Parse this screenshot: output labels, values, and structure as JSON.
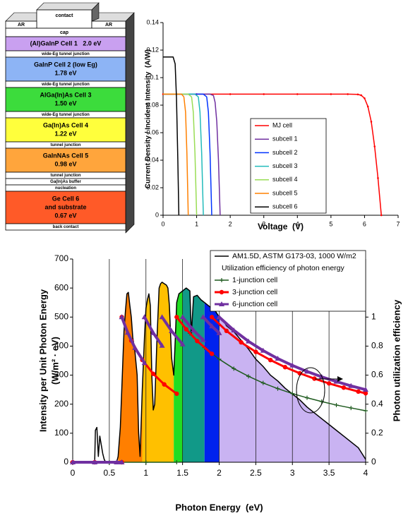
{
  "cell_stack": {
    "contact": "contact",
    "ar_left": "AR",
    "ar_right": "AR",
    "cap": "cap",
    "layers": [
      {
        "lines": [
          "(Al)GaInP Cell 1   2.0 eV"
        ],
        "color": "#c9a0f0"
      },
      {
        "lines": [
          "wide-Eg tunnel junction"
        ],
        "color": "#ffffff"
      },
      {
        "lines": [
          "GaInP Cell 2 (low Eg)",
          "1.78 eV"
        ],
        "color": "#8db4f5"
      },
      {
        "lines": [
          "wide-Eg tunnel junction"
        ],
        "color": "#ffffff"
      },
      {
        "lines": [
          "AlGa(In)As Cell 3",
          "1.50 eV"
        ],
        "color": "#3cdc3c"
      },
      {
        "lines": [
          "wide-Eg tunnel junction"
        ],
        "color": "#ffffff"
      },
      {
        "lines": [
          "Ga(In)As Cell 4",
          "1.22 eV"
        ],
        "color": "#ffff3c"
      },
      {
        "lines": [
          "tunnel junction"
        ],
        "color": "#ffffff"
      },
      {
        "lines": [
          "GaInNAs Cell 5",
          "0.98 eV"
        ],
        "color": "#ffa53c"
      },
      {
        "lines": [
          "tunnel junction"
        ],
        "color": "#ffffff"
      },
      {
        "lines": [
          "Ga(In)As buffer"
        ],
        "color": "#ffffff"
      },
      {
        "lines": [
          "nucleation"
        ],
        "color": "#ffffff"
      },
      {
        "lines": [
          "Ge Cell 6",
          "and substrate",
          "0.67 eV"
        ],
        "color": "#ff5a28"
      },
      {
        "lines": [
          "back contact"
        ],
        "color": "#ffffff"
      }
    ]
  },
  "chart_data": [
    {
      "type": "line",
      "xlabel": "Voltage  (V)",
      "ylabel": "Current Density / Incident Intensity  (A/W)",
      "xlim": [
        0,
        7
      ],
      "xticks": [
        0,
        1,
        2,
        3,
        4,
        5,
        6,
        7
      ],
      "ylim": [
        0,
        0.14
      ],
      "yticks": [
        0,
        0.02,
        0.04,
        0.06,
        0.08,
        0.1,
        0.12,
        0.14
      ],
      "series": [
        {
          "name": "MJ cell",
          "color": "#ff0000",
          "marker": "dot",
          "x": [
            0,
            1,
            2,
            3,
            4,
            5,
            5.5,
            5.8,
            5.9,
            6.0,
            6.1,
            6.2,
            6.3,
            6.4,
            6.5
          ],
          "values": [
            0.088,
            0.088,
            0.088,
            0.088,
            0.088,
            0.088,
            0.088,
            0.0878,
            0.0872,
            0.085,
            0.079,
            0.068,
            0.05,
            0.027,
            0
          ]
        },
        {
          "name": "subcell 1",
          "color": "#7030a0",
          "x": [
            0,
            1.4,
            1.5,
            1.55,
            1.6,
            1.65,
            1.7
          ],
          "values": [
            0.088,
            0.088,
            0.087,
            0.082,
            0.068,
            0.04,
            0
          ]
        },
        {
          "name": "subcell 2",
          "color": "#0033ff",
          "x": [
            0,
            1.2,
            1.3,
            1.35,
            1.4,
            1.45
          ],
          "values": [
            0.088,
            0.088,
            0.086,
            0.075,
            0.045,
            0
          ]
        },
        {
          "name": "subcell 3",
          "color": "#22bbbb",
          "x": [
            0,
            0.95,
            1.05,
            1.1,
            1.15,
            1.2
          ],
          "values": [
            0.088,
            0.088,
            0.086,
            0.075,
            0.045,
            0
          ]
        },
        {
          "name": "subcell 4",
          "color": "#99dd55",
          "x": [
            0,
            0.75,
            0.85,
            0.9,
            0.95,
            1.0
          ],
          "values": [
            0.088,
            0.088,
            0.086,
            0.075,
            0.045,
            0
          ]
        },
        {
          "name": "subcell 5",
          "color": "#ff8000",
          "x": [
            0,
            0.55,
            0.62,
            0.67,
            0.71,
            0.75
          ],
          "values": [
            0.088,
            0.088,
            0.086,
            0.075,
            0.045,
            0
          ]
        },
        {
          "name": "subcell 6",
          "color": "#000000",
          "x": [
            0,
            0.3,
            0.36,
            0.4,
            0.44,
            0.47
          ],
          "values": [
            0.115,
            0.115,
            0.11,
            0.085,
            0.04,
            0
          ]
        }
      ]
    },
    {
      "type": "line",
      "xlabel": "Photon Energy  (eV)",
      "ylabel": [
        "Intensity per Unit Photon Energy",
        "(W/m² · eV)"
      ],
      "y2label": "Photon utilization efficiency",
      "legend_heading": "Utilization efficiency of photon energy",
      "grid": "x",
      "xlim": [
        0,
        4
      ],
      "xticks": [
        0,
        0.5,
        1,
        1.5,
        2,
        2.5,
        3,
        3.5,
        4
      ],
      "ylim": [
        0,
        700
      ],
      "yticks": [
        0,
        100,
        200,
        300,
        400,
        500,
        600,
        700
      ],
      "y2lim": [
        0,
        1.4
      ],
      "y2ticks": [
        0,
        0.2,
        0.4,
        0.6,
        0.8,
        1
      ],
      "fills": [
        {
          "from": 0.62,
          "to": 0.95,
          "color": "#ff7f00"
        },
        {
          "from": 0.95,
          "to": 1.38,
          "color": "#ffc000"
        },
        {
          "from": 1.38,
          "to": 1.5,
          "color": "#22dd22"
        },
        {
          "from": 1.5,
          "to": 1.8,
          "color": "#119988"
        },
        {
          "from": 1.8,
          "to": 2.0,
          "color": "#0022ee"
        },
        {
          "from": 2.0,
          "to": 4.0,
          "color": "#c9b3f2"
        }
      ],
      "series": [
        {
          "name": "AM1.5D, ASTM G173-03, 1000 W/m2",
          "color": "#000000",
          "x": [
            0.28,
            0.3,
            0.31,
            0.33,
            0.35,
            0.37,
            0.39,
            0.41,
            0.43,
            0.45,
            0.5,
            0.55,
            0.6,
            0.62,
            0.65,
            0.67,
            0.7,
            0.72,
            0.74,
            0.76,
            0.78,
            0.8,
            0.82,
            0.85,
            0.88,
            0.9,
            0.92,
            0.95,
            0.98,
            1.0,
            1.02,
            1.04,
            1.06,
            1.08,
            1.1,
            1.12,
            1.15,
            1.18,
            1.2,
            1.22,
            1.25,
            1.28,
            1.3,
            1.32,
            1.35,
            1.38,
            1.4,
            1.42,
            1.45,
            1.5,
            1.55,
            1.6,
            1.62,
            1.65,
            1.7,
            1.75,
            1.8,
            1.85,
            1.9,
            1.95,
            2.0,
            2.05,
            2.1,
            2.2,
            2.3,
            2.4,
            2.5,
            2.6,
            2.7,
            2.8,
            2.9,
            3.0,
            3.1,
            3.2,
            3.3,
            3.4,
            3.5,
            3.6,
            3.7,
            3.8,
            3.9,
            4.0
          ],
          "values": [
            0,
            0,
            110,
            120,
            20,
            90,
            60,
            30,
            10,
            0,
            0,
            0,
            0,
            20,
            120,
            250,
            450,
            520,
            580,
            585,
            540,
            500,
            430,
            380,
            300,
            100,
            20,
            250,
            430,
            530,
            560,
            580,
            540,
            300,
            180,
            200,
            420,
            600,
            615,
            620,
            615,
            610,
            600,
            540,
            360,
            300,
            420,
            550,
            580,
            590,
            600,
            590,
            440,
            570,
            575,
            560,
            550,
            540,
            530,
            520,
            500,
            490,
            470,
            450,
            420,
            390,
            355,
            330,
            300,
            280,
            255,
            235,
            215,
            190,
            170,
            150,
            130,
            110,
            90,
            70,
            50,
            10
          ]
        },
        {
          "name": "1-junction cell",
          "color": "#1e5a1e",
          "marker": "plus",
          "width": 1.5,
          "axis": "y2",
          "x": [
            0,
            0.5,
            1.0,
            1.42,
            1.42,
            1.42,
            1.6,
            1.8,
            2.0,
            2.2,
            2.4,
            2.6,
            2.8,
            3.0,
            3.2,
            3.4,
            3.6,
            3.8,
            4.0
          ],
          "values": [
            0,
            0,
            0,
            0,
            null,
            1,
            0.888,
            0.789,
            0.71,
            0.645,
            0.592,
            0.546,
            0.507,
            0.473,
            0.444,
            0.418,
            0.394,
            0.374,
            0.355
          ]
        },
        {
          "name": "3-junction cell",
          "color": "#ff0000",
          "marker": "circle",
          "width": 3,
          "axis": "y2",
          "x": [
            0,
            0.3,
            0.67,
            0.67,
            0.67,
            0.8,
            0.95,
            1.1,
            1.25,
            1.42,
            1.42,
            1.42,
            1.55,
            1.7,
            1.9,
            1.9,
            1.9,
            2.1,
            2.3,
            2.5,
            2.7,
            2.9,
            3.1,
            3.3,
            3.5,
            3.7,
            3.9,
            4.0
          ],
          "values": [
            0,
            0,
            0,
            null,
            1,
            0.838,
            0.705,
            0.609,
            0.536,
            0.472,
            null,
            1,
            0.916,
            0.835,
            0.747,
            null,
            1,
            0.905,
            0.826,
            0.76,
            0.704,
            0.655,
            0.613,
            0.576,
            0.543,
            0.514,
            0.487,
            0.475
          ]
        },
        {
          "name": "6-junction cell",
          "color": "#7030a0",
          "marker": "triangle",
          "width": 4,
          "axis": "y2",
          "x": [
            0,
            0.3,
            0.6,
            0.67,
            0.67,
            0.67,
            0.75,
            0.85,
            0.98,
            0.98,
            0.98,
            1.1,
            1.22,
            1.22,
            1.22,
            1.35,
            1.5,
            1.5,
            1.5,
            1.65,
            1.78,
            1.78,
            1.78,
            1.9,
            2.0,
            2.0,
            2.0,
            2.2,
            2.4,
            2.6,
            2.8,
            3.0,
            3.2,
            3.4,
            3.6,
            3.8,
            4.0
          ],
          "values": [
            0,
            0,
            0,
            0,
            null,
            1,
            0.893,
            0.788,
            0.684,
            null,
            1,
            0.891,
            0.803,
            null,
            1,
            0.904,
            0.813,
            null,
            1,
            0.909,
            0.843,
            null,
            1,
            0.937,
            0.89,
            null,
            1,
            0.909,
            0.833,
            0.769,
            0.714,
            0.667,
            0.625,
            0.588,
            0.556,
            0.526,
            0.5
          ]
        }
      ]
    }
  ]
}
